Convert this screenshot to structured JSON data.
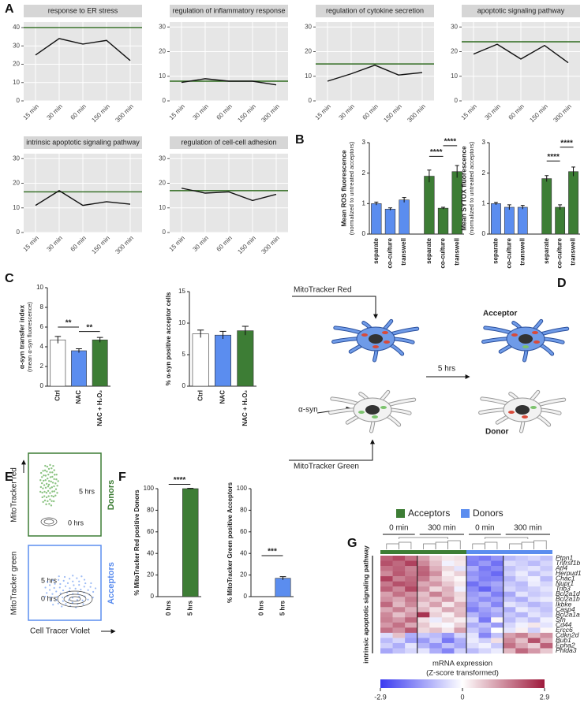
{
  "panel_labels": [
    "A",
    "B",
    "C",
    "D",
    "E",
    "F",
    "G"
  ],
  "chart_data": [
    {
      "type": "line",
      "title": "response to ER stress",
      "categories": [
        "15 min",
        "30 min",
        "60 min",
        "150 min",
        "300 min"
      ],
      "values": [
        25,
        34,
        31,
        33,
        22
      ],
      "reference": 40,
      "ylim": [
        0,
        43
      ],
      "yticks": [
        0,
        10,
        20,
        30,
        40
      ],
      "color": "#111111",
      "reference_color": "#2f6b1f",
      "grid": true
    },
    {
      "type": "line",
      "title": "regulation of inflammatory response",
      "categories": [
        "15 min",
        "30 min",
        "60 min",
        "150 min",
        "300 min"
      ],
      "values": [
        7.5,
        9,
        8,
        8,
        6.5
      ],
      "reference": 8,
      "ylim": [
        0,
        32
      ],
      "yticks": [
        0,
        10,
        20,
        30
      ],
      "color": "#111111",
      "reference_color": "#2f6b1f",
      "grid": true
    },
    {
      "type": "line",
      "title": "regulation of cytokine secretion",
      "categories": [
        "15 min",
        "30 min",
        "60 min",
        "150 min",
        "300 min"
      ],
      "values": [
        8,
        11,
        14.5,
        10.5,
        11.5
      ],
      "reference": 15,
      "ylim": [
        0,
        32
      ],
      "yticks": [
        0,
        10,
        20,
        30
      ],
      "color": "#111111",
      "reference_color": "#2f6b1f",
      "grid": true
    },
    {
      "type": "line",
      "title": "apoptotic signaling pathway",
      "categories": [
        "15 min",
        "30 min",
        "60 min",
        "150 min",
        "300 min"
      ],
      "values": [
        19,
        23,
        17,
        22.5,
        15.5
      ],
      "reference": 24,
      "ylim": [
        0,
        32
      ],
      "yticks": [
        0,
        10,
        20,
        30
      ],
      "color": "#111111",
      "reference_color": "#2f6b1f",
      "grid": true
    },
    {
      "type": "line",
      "title": "intrinsic apoptotic signaling pathway",
      "categories": [
        "15 min",
        "30 min",
        "60 min",
        "150 min",
        "300 min"
      ],
      "values": [
        11,
        17,
        11,
        12.5,
        11.5
      ],
      "reference": 16.5,
      "ylim": [
        0,
        32
      ],
      "yticks": [
        0,
        10,
        20,
        30
      ],
      "color": "#111111",
      "reference_color": "#2f6b1f",
      "grid": true
    },
    {
      "type": "line",
      "title": "regulation of cell-cell adhesion",
      "categories": [
        "15 min",
        "30 min",
        "60 min",
        "150 min",
        "300 min"
      ],
      "values": [
        18,
        16,
        16.5,
        13,
        15.5
      ],
      "reference": 17,
      "ylim": [
        0,
        32
      ],
      "yticks": [
        0,
        10,
        20,
        30
      ],
      "color": "#111111",
      "reference_color": "#2f6b1f",
      "grid": true
    },
    {
      "type": "bar",
      "ylabel": "Mean ROS fluorescence",
      "ylabel2": "(normalized to untreated acceptors)",
      "categories": [
        "separate",
        "co-culture",
        "transwell",
        "separate",
        "co-culture",
        "transwell"
      ],
      "values": [
        1.0,
        0.82,
        1.12,
        1.9,
        0.85,
        2.05
      ],
      "errors": [
        0.05,
        0.04,
        0.08,
        0.2,
        0.03,
        0.2
      ],
      "colors": [
        "#5b8def",
        "#5b8def",
        "#5b8def",
        "#3d7d35",
        "#3d7d35",
        "#3d7d35"
      ],
      "ylim": [
        0,
        3
      ],
      "yticks": [
        0,
        1,
        2,
        3
      ],
      "annotations": [
        "****",
        "****"
      ]
    },
    {
      "type": "bar",
      "ylabel": "Mean SYTOX fluorescence",
      "ylabel2": "(normalized to untreated acceptors)",
      "categories": [
        "separate",
        "co-culture",
        "transwell",
        "separate",
        "co-culture",
        "transwell"
      ],
      "values": [
        1.0,
        0.88,
        0.88,
        1.82,
        0.88,
        2.05
      ],
      "errors": [
        0.04,
        0.08,
        0.06,
        0.1,
        0.08,
        0.15
      ],
      "colors": [
        "#5b8def",
        "#5b8def",
        "#5b8def",
        "#3d7d35",
        "#3d7d35",
        "#3d7d35"
      ],
      "ylim": [
        0,
        3
      ],
      "yticks": [
        0,
        1,
        2,
        3
      ],
      "annotations": [
        "****",
        "****"
      ]
    },
    {
      "type": "bar",
      "ylabel": "α-syn transfer index",
      "ylabel2": "(mean α-syn fluorescence)",
      "categories": [
        "Ctrl",
        "NAC",
        "NAC + H₂O₂"
      ],
      "values": [
        4.7,
        3.6,
        4.7
      ],
      "errors": [
        0.35,
        0.2,
        0.25
      ],
      "colors": [
        "#ffffff",
        "#5b8def",
        "#3d7d35"
      ],
      "ylim": [
        0,
        10
      ],
      "yticks": [
        0,
        2,
        4,
        6,
        8,
        10
      ],
      "annotations": [
        "**",
        "**"
      ]
    },
    {
      "type": "bar",
      "ylabel": "% α-syn positive acceptor cells",
      "categories": [
        "Ctrl",
        "NAC",
        "NAC + H₂O₂"
      ],
      "values": [
        8.3,
        8.1,
        8.8
      ],
      "errors": [
        0.6,
        0.6,
        0.7
      ],
      "colors": [
        "#ffffff",
        "#5b8def",
        "#3d7d35"
      ],
      "ylim": [
        0,
        15
      ],
      "yticks": [
        0,
        5,
        10,
        15
      ]
    },
    {
      "type": "bar",
      "ylabel": "% MitoTracker Red positive Donors",
      "categories": [
        "0 hrs",
        "5 hrs"
      ],
      "values": [
        0,
        100
      ],
      "errors": [
        0,
        0.3
      ],
      "colors": [
        "#3d7d35",
        "#3d7d35"
      ],
      "ylim": [
        0,
        100
      ],
      "yticks": [
        0,
        20,
        40,
        60,
        80,
        100
      ],
      "annotations": [
        "****"
      ]
    },
    {
      "type": "bar",
      "ylabel": "% MitoTracker Green positive Acceptors",
      "categories": [
        "0 hrs",
        "5 hrs"
      ],
      "values": [
        0,
        17
      ],
      "errors": [
        0,
        1.5
      ],
      "colors": [
        "#5b8def",
        "#5b8def"
      ],
      "ylim": [
        0,
        100
      ],
      "yticks": [
        0,
        20,
        40,
        60,
        80,
        100
      ],
      "annotations": [
        "***"
      ]
    },
    {
      "type": "heatmap",
      "legend": [
        {
          "name": "Acceptors",
          "color": "#3d7d35"
        },
        {
          "name": "Donors",
          "color": "#5b8def"
        }
      ],
      "column_group_labels": [
        "0 min",
        "300 min",
        "0 min",
        "300 min"
      ],
      "row_group_label": "intrinsic apoptotic signaling pathway",
      "rows": [
        "Ptpn1",
        "Tnfrsf1b",
        "Atf4",
        "Herpud1",
        "Chac1",
        "Nupr1",
        "Trib3",
        "Bcl2a1d",
        "Bcl2a1b",
        "Ikbke",
        "Casp4",
        "Bcl2a1a",
        "Sfn",
        "Cd44",
        "Ercc6",
        "Cdkn2d",
        "Bub1",
        "Epha2",
        "Phlda3"
      ],
      "values": [
        [
          2.0,
          2.3,
          1.8,
          1.2,
          0.6,
          0.3,
          0.4,
          -1.8,
          -2.0,
          -1.6,
          -1.0,
          -0.8,
          -0.6,
          -0.9
        ],
        [
          2.2,
          1.9,
          2.4,
          1.5,
          0.8,
          -0.2,
          0.3,
          -1.9,
          -1.5,
          -2.1,
          -0.5,
          -0.7,
          -1.0,
          -0.6
        ],
        [
          1.8,
          2.0,
          1.6,
          1.9,
          1.0,
          0.5,
          -0.4,
          -1.2,
          -2.0,
          -1.7,
          -0.9,
          -0.6,
          -0.4,
          -0.8
        ],
        [
          1.5,
          2.1,
          1.7,
          2.0,
          1.4,
          0.2,
          0.6,
          -1.6,
          -1.8,
          -2.2,
          -0.7,
          -0.3,
          -0.9,
          -0.5
        ],
        [
          2.4,
          1.6,
          1.9,
          1.7,
          0.9,
          0.4,
          0.1,
          -1.4,
          -1.9,
          -1.8,
          -1.1,
          -0.5,
          -0.2,
          -1.0
        ],
        [
          1.7,
          2.2,
          2.0,
          1.1,
          1.3,
          0.7,
          0.3,
          -2.1,
          -1.6,
          -1.3,
          -0.8,
          -1.0,
          -0.3,
          -0.6
        ],
        [
          2.0,
          1.5,
          2.3,
          1.4,
          0.5,
          1.0,
          -0.2,
          -1.7,
          -2.3,
          -1.5,
          -0.6,
          -0.9,
          -0.7,
          -0.4
        ],
        [
          1.2,
          1.8,
          1.4,
          0.8,
          1.6,
          0.9,
          0.5,
          -1.5,
          -1.2,
          -1.9,
          -1.3,
          -0.4,
          -0.8,
          -0.6
        ],
        [
          1.4,
          1.1,
          1.7,
          1.0,
          0.7,
          1.3,
          0.4,
          -1.3,
          -1.7,
          -1.4,
          -0.9,
          -1.2,
          -0.5,
          -0.3
        ],
        [
          1.9,
          0.9,
          1.5,
          0.6,
          1.2,
          0.3,
          1.0,
          -1.6,
          -1.1,
          -1.8,
          -0.4,
          -0.7,
          -1.1,
          -0.8
        ],
        [
          1.1,
          1.6,
          1.0,
          0.9,
          0.4,
          1.1,
          0.8,
          -1.9,
          -1.4,
          -1.0,
          -1.2,
          -0.3,
          -0.6,
          -0.9
        ],
        [
          1.5,
          0.8,
          1.3,
          2.6,
          0.6,
          0.2,
          0.9,
          -1.1,
          -1.6,
          -1.3,
          -0.8,
          -1.1,
          -0.4,
          -0.7
        ],
        [
          1.6,
          1.3,
          1.9,
          0.4,
          -0.3,
          0.5,
          0.2,
          -0.6,
          -2.0,
          0.1,
          -1.0,
          -0.5,
          -0.9,
          -0.2
        ],
        [
          1.3,
          1.8,
          1.1,
          0.7,
          0.2,
          -0.1,
          0.6,
          -1.2,
          -0.9,
          -1.5,
          -0.6,
          -0.2,
          0.3,
          -0.4
        ],
        [
          1.8,
          1.4,
          2.1,
          0.5,
          0.8,
          0.3,
          1.2,
          -0.8,
          -1.3,
          0.0,
          -0.4,
          0.2,
          -0.7,
          0.1
        ],
        [
          -0.5,
          0.8,
          -1.2,
          -0.8,
          -1.0,
          -1.5,
          -0.6,
          -0.4,
          -1.8,
          -0.9,
          1.2,
          1.6,
          0.9,
          1.4
        ],
        [
          -1.0,
          -0.6,
          -1.4,
          -1.5,
          -0.8,
          -2.0,
          -1.2,
          -0.3,
          -0.7,
          0.4,
          1.5,
          0.8,
          2.2,
          1.0
        ],
        [
          -0.7,
          -1.2,
          -0.4,
          -1.1,
          -1.6,
          -0.9,
          -1.3,
          -0.5,
          -0.2,
          -0.8,
          1.8,
          1.1,
          0.6,
          2.0
        ],
        [
          -1.3,
          -0.9,
          -0.6,
          -0.4,
          -1.2,
          -1.8,
          -0.7,
          -1.0,
          -0.6,
          -0.3,
          0.9,
          1.9,
          1.3,
          0.7
        ]
      ],
      "colorbar_title": "mRNA expression",
      "colorbar_subtitle": "(Z-score transformed)",
      "zlim": [
        -2.9,
        2.9
      ],
      "zticks": [
        -2.9,
        0,
        2.9
      ],
      "colors": [
        "#3b3bf0",
        "#ffffff",
        "#9e1a3c"
      ]
    }
  ],
  "diagram": {
    "top_probe": "MitoTracker Red",
    "acceptor": "Acceptor",
    "time": "5 hrs",
    "cargo": "α-syn",
    "donor": "Donor",
    "bottom_probe": "MitoTracker Green"
  },
  "flow": {
    "top_ylabel": "MitoTracker red",
    "top_late": "5 hrs",
    "top_early": "0 hrs",
    "top_group": "Donors",
    "bottom_ylabel": "MitoTracker green",
    "bottom_late": "5 hrs",
    "bottom_early": "0 hrs",
    "bottom_group": "Acceptors",
    "xlabel": "Cell Tracer Violet"
  }
}
